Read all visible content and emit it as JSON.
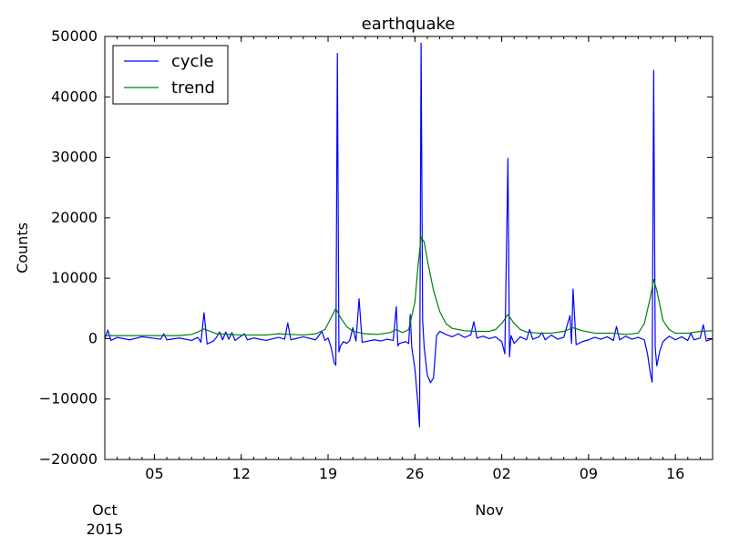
{
  "chart_data": {
    "type": "line",
    "title": "earthquake",
    "xlabel": "",
    "ylabel": "Counts",
    "x_range": [
      "2015-10-01",
      "2015-11-19"
    ],
    "ylim": [
      -20000,
      50000
    ],
    "yticks": [
      -20000,
      -10000,
      0,
      10000,
      20000,
      30000,
      40000,
      50000
    ],
    "ytick_labels": [
      "−20000",
      "−10000",
      "0",
      "10000",
      "20000",
      "30000",
      "40000",
      "50000"
    ],
    "xticks": [
      {
        "date": "2015-10-05",
        "label": "05"
      },
      {
        "date": "2015-10-12",
        "label": "12"
      },
      {
        "date": "2015-10-19",
        "label": "19"
      },
      {
        "date": "2015-10-26",
        "label": "26"
      },
      {
        "date": "2015-11-02",
        "label": "02"
      },
      {
        "date": "2015-11-09",
        "label": "09"
      },
      {
        "date": "2015-11-16",
        "label": "16"
      }
    ],
    "month_labels": [
      {
        "date": "2015-10-01",
        "label": "Oct",
        "year": "2015"
      },
      {
        "date": "2015-11-01",
        "label": "Nov",
        "year": ""
      }
    ],
    "grid": false,
    "legend": "top-left",
    "series": [
      {
        "name": "cycle",
        "color": "#0000ff",
        "points": [
          [
            "2015-10-01 00:00",
            0
          ],
          [
            "2015-10-01 06:00",
            1400
          ],
          [
            "2015-10-01 12:00",
            -300
          ],
          [
            "2015-10-02 00:00",
            200
          ],
          [
            "2015-10-03 00:00",
            -200
          ],
          [
            "2015-10-04 00:00",
            300
          ],
          [
            "2015-10-05 12:00",
            -100
          ],
          [
            "2015-10-05 18:00",
            800
          ],
          [
            "2015-10-06 00:00",
            -200
          ],
          [
            "2015-10-07 00:00",
            100
          ],
          [
            "2015-10-08 00:00",
            -300
          ],
          [
            "2015-10-08 12:00",
            200
          ],
          [
            "2015-10-08 18:00",
            -600
          ],
          [
            "2015-10-09 00:00",
            4300
          ],
          [
            "2015-10-09 06:00",
            -900
          ],
          [
            "2015-10-09 18:00",
            -400
          ],
          [
            "2015-10-10 00:00",
            200
          ],
          [
            "2015-10-10 06:00",
            1100
          ],
          [
            "2015-10-10 12:00",
            -200
          ],
          [
            "2015-10-10 18:00",
            1100
          ],
          [
            "2015-10-11 00:00",
            -100
          ],
          [
            "2015-10-11 06:00",
            1000
          ],
          [
            "2015-10-11 12:00",
            -300
          ],
          [
            "2015-10-12 06:00",
            800
          ],
          [
            "2015-10-12 12:00",
            -200
          ],
          [
            "2015-10-13 00:00",
            100
          ],
          [
            "2015-10-14 00:00",
            -300
          ],
          [
            "2015-10-15 00:00",
            200
          ],
          [
            "2015-10-15 12:00",
            -100
          ],
          [
            "2015-10-15 18:00",
            2600
          ],
          [
            "2015-10-16 00:00",
            -200
          ],
          [
            "2015-10-17 00:00",
            300
          ],
          [
            "2015-10-18 00:00",
            -200
          ],
          [
            "2015-10-18 12:00",
            1200
          ],
          [
            "2015-10-18 18:00",
            -300
          ],
          [
            "2015-10-19 00:00",
            100
          ],
          [
            "2015-10-19 06:00",
            -1500
          ],
          [
            "2015-10-19 12:00",
            -4000
          ],
          [
            "2015-10-19 15:00",
            -4400
          ],
          [
            "2015-10-19 18:00",
            47200
          ],
          [
            "2015-10-19 21:00",
            -2200
          ],
          [
            "2015-10-20 00:00",
            -1200
          ],
          [
            "2015-10-20 06:00",
            -500
          ],
          [
            "2015-10-20 12:00",
            -800
          ],
          [
            "2015-10-20 18:00",
            -300
          ],
          [
            "2015-10-21 00:00",
            1800
          ],
          [
            "2015-10-21 06:00",
            -400
          ],
          [
            "2015-10-21 12:00",
            6600
          ],
          [
            "2015-10-21 18:00",
            -600
          ],
          [
            "2015-10-22 06:00",
            -400
          ],
          [
            "2015-10-22 18:00",
            -200
          ],
          [
            "2015-10-23 06:00",
            -400
          ],
          [
            "2015-10-23 18:00",
            -100
          ],
          [
            "2015-10-24 06:00",
            -300
          ],
          [
            "2015-10-24 12:00",
            5300
          ],
          [
            "2015-10-24 15:00",
            -1200
          ],
          [
            "2015-10-24 18:00",
            -800
          ],
          [
            "2015-10-25 06:00",
            -500
          ],
          [
            "2015-10-25 12:00",
            -800
          ],
          [
            "2015-10-25 15:00",
            4000
          ],
          [
            "2015-10-25 18:00",
            -1500
          ],
          [
            "2015-10-26 00:00",
            -5000
          ],
          [
            "2015-10-26 06:00",
            -11000
          ],
          [
            "2015-10-26 09:00",
            -14600
          ],
          [
            "2015-10-26 12:00",
            48900
          ],
          [
            "2015-10-26 15:00",
            3000
          ],
          [
            "2015-10-26 18:00",
            -1500
          ],
          [
            "2015-10-27 00:00",
            -6000
          ],
          [
            "2015-10-27 06:00",
            -7300
          ],
          [
            "2015-10-27 12:00",
            -6500
          ],
          [
            "2015-10-27 18:00",
            500
          ],
          [
            "2015-10-28 00:00",
            1200
          ],
          [
            "2015-10-28 12:00",
            700
          ],
          [
            "2015-10-29 00:00",
            300
          ],
          [
            "2015-10-29 12:00",
            800
          ],
          [
            "2015-10-30 00:00",
            200
          ],
          [
            "2015-10-30 12:00",
            600
          ],
          [
            "2015-10-30 18:00",
            2800
          ],
          [
            "2015-10-31 00:00",
            100
          ],
          [
            "2015-10-31 12:00",
            400
          ],
          [
            "2015-11-01 00:00",
            0
          ],
          [
            "2015-11-01 12:00",
            300
          ],
          [
            "2015-11-02 00:00",
            -500
          ],
          [
            "2015-11-02 06:00",
            -2500
          ],
          [
            "2015-11-02 12:00",
            29800
          ],
          [
            "2015-11-02 15:00",
            -3000
          ],
          [
            "2015-11-02 18:00",
            500
          ],
          [
            "2015-11-03 00:00",
            -800
          ],
          [
            "2015-11-03 12:00",
            300
          ],
          [
            "2015-11-04 00:00",
            -200
          ],
          [
            "2015-11-04 06:00",
            1500
          ],
          [
            "2015-11-04 12:00",
            -100
          ],
          [
            "2015-11-05 00:00",
            300
          ],
          [
            "2015-11-05 06:00",
            1000
          ],
          [
            "2015-11-05 12:00",
            -200
          ],
          [
            "2015-11-06 00:00",
            600
          ],
          [
            "2015-11-06 12:00",
            -100
          ],
          [
            "2015-11-07 00:00",
            200
          ],
          [
            "2015-11-07 12:00",
            3800
          ],
          [
            "2015-11-07 15:00",
            -800
          ],
          [
            "2015-11-07 18:00",
            8200
          ],
          [
            "2015-11-08 00:00",
            -1000
          ],
          [
            "2015-11-08 12:00",
            -500
          ],
          [
            "2015-11-09 00:00",
            -200
          ],
          [
            "2015-11-09 12:00",
            200
          ],
          [
            "2015-11-10 00:00",
            -100
          ],
          [
            "2015-11-10 12:00",
            300
          ],
          [
            "2015-11-11 00:00",
            -300
          ],
          [
            "2015-11-11 06:00",
            2000
          ],
          [
            "2015-11-11 12:00",
            -200
          ],
          [
            "2015-11-12 00:00",
            400
          ],
          [
            "2015-11-12 12:00",
            -100
          ],
          [
            "2015-11-13 00:00",
            200
          ],
          [
            "2015-11-13 12:00",
            -200
          ],
          [
            "2015-11-13 18:00",
            -2500
          ],
          [
            "2015-11-14 00:00",
            -6000
          ],
          [
            "2015-11-14 03:00",
            -7200
          ],
          [
            "2015-11-14 06:00",
            44400
          ],
          [
            "2015-11-14 09:00",
            -1500
          ],
          [
            "2015-11-14 12:00",
            -4500
          ],
          [
            "2015-11-14 18:00",
            -2000
          ],
          [
            "2015-11-15 00:00",
            -500
          ],
          [
            "2015-11-15 12:00",
            400
          ],
          [
            "2015-11-16 00:00",
            -200
          ],
          [
            "2015-11-16 12:00",
            300
          ],
          [
            "2015-11-17 00:00",
            -300
          ],
          [
            "2015-11-17 06:00",
            900
          ],
          [
            "2015-11-17 12:00",
            -200
          ],
          [
            "2015-11-18 00:00",
            100
          ],
          [
            "2015-11-18 06:00",
            2300
          ],
          [
            "2015-11-18 12:00",
            -400
          ],
          [
            "2015-11-19 00:00",
            0
          ]
        ]
      },
      {
        "name": "trend",
        "color": "#008000",
        "points": [
          [
            "2015-10-01 00:00",
            500
          ],
          [
            "2015-10-04 00:00",
            500
          ],
          [
            "2015-10-07 00:00",
            500
          ],
          [
            "2015-10-08 00:00",
            700
          ],
          [
            "2015-10-08 12:00",
            1100
          ],
          [
            "2015-10-09 00:00",
            1600
          ],
          [
            "2015-10-09 12:00",
            1200
          ],
          [
            "2015-10-10 00:00",
            800
          ],
          [
            "2015-10-12 00:00",
            600
          ],
          [
            "2015-10-14 00:00",
            600
          ],
          [
            "2015-10-15 00:00",
            800
          ],
          [
            "2015-10-16 00:00",
            700
          ],
          [
            "2015-10-17 00:00",
            600
          ],
          [
            "2015-10-18 00:00",
            800
          ],
          [
            "2015-10-18 18:00",
            1500
          ],
          [
            "2015-10-19 06:00",
            3500
          ],
          [
            "2015-10-19 15:00",
            5000
          ],
          [
            "2015-10-20 00:00",
            3500
          ],
          [
            "2015-10-20 12:00",
            2000
          ],
          [
            "2015-10-21 00:00",
            1200
          ],
          [
            "2015-10-22 00:00",
            800
          ],
          [
            "2015-10-23 00:00",
            700
          ],
          [
            "2015-10-24 00:00",
            1000
          ],
          [
            "2015-10-24 12:00",
            1500
          ],
          [
            "2015-10-25 00:00",
            1000
          ],
          [
            "2015-10-25 12:00",
            1500
          ],
          [
            "2015-10-26 00:00",
            6000
          ],
          [
            "2015-10-26 06:00",
            12000
          ],
          [
            "2015-10-26 12:00",
            16800
          ],
          [
            "2015-10-26 18:00",
            16000
          ],
          [
            "2015-10-27 00:00",
            13000
          ],
          [
            "2015-10-27 12:00",
            8000
          ],
          [
            "2015-10-28 00:00",
            4500
          ],
          [
            "2015-10-28 12:00",
            2500
          ],
          [
            "2015-10-29 00:00",
            1700
          ],
          [
            "2015-10-30 00:00",
            1300
          ],
          [
            "2015-10-31 00:00",
            1200
          ],
          [
            "2015-11-01 00:00",
            1200
          ],
          [
            "2015-11-01 12:00",
            1500
          ],
          [
            "2015-11-02 00:00",
            2500
          ],
          [
            "2015-11-02 12:00",
            4000
          ],
          [
            "2015-11-03 00:00",
            2500
          ],
          [
            "2015-11-03 12:00",
            1500
          ],
          [
            "2015-11-04 00:00",
            1100
          ],
          [
            "2015-11-05 00:00",
            900
          ],
          [
            "2015-11-06 00:00",
            900
          ],
          [
            "2015-11-07 00:00",
            1200
          ],
          [
            "2015-11-07 18:00",
            1800
          ],
          [
            "2015-11-08 12:00",
            1300
          ],
          [
            "2015-11-09 12:00",
            900
          ],
          [
            "2015-11-11 00:00",
            900
          ],
          [
            "2015-11-12 00:00",
            700
          ],
          [
            "2015-11-13 00:00",
            900
          ],
          [
            "2015-11-13 12:00",
            2500
          ],
          [
            "2015-11-14 00:00",
            7000
          ],
          [
            "2015-11-14 06:00",
            9800
          ],
          [
            "2015-11-14 12:00",
            8000
          ],
          [
            "2015-11-15 00:00",
            3000
          ],
          [
            "2015-11-15 12:00",
            1500
          ],
          [
            "2015-11-16 00:00",
            900
          ],
          [
            "2015-11-17 00:00",
            900
          ],
          [
            "2015-11-18 00:00",
            1200
          ],
          [
            "2015-11-19 00:00",
            1300
          ]
        ]
      }
    ]
  }
}
